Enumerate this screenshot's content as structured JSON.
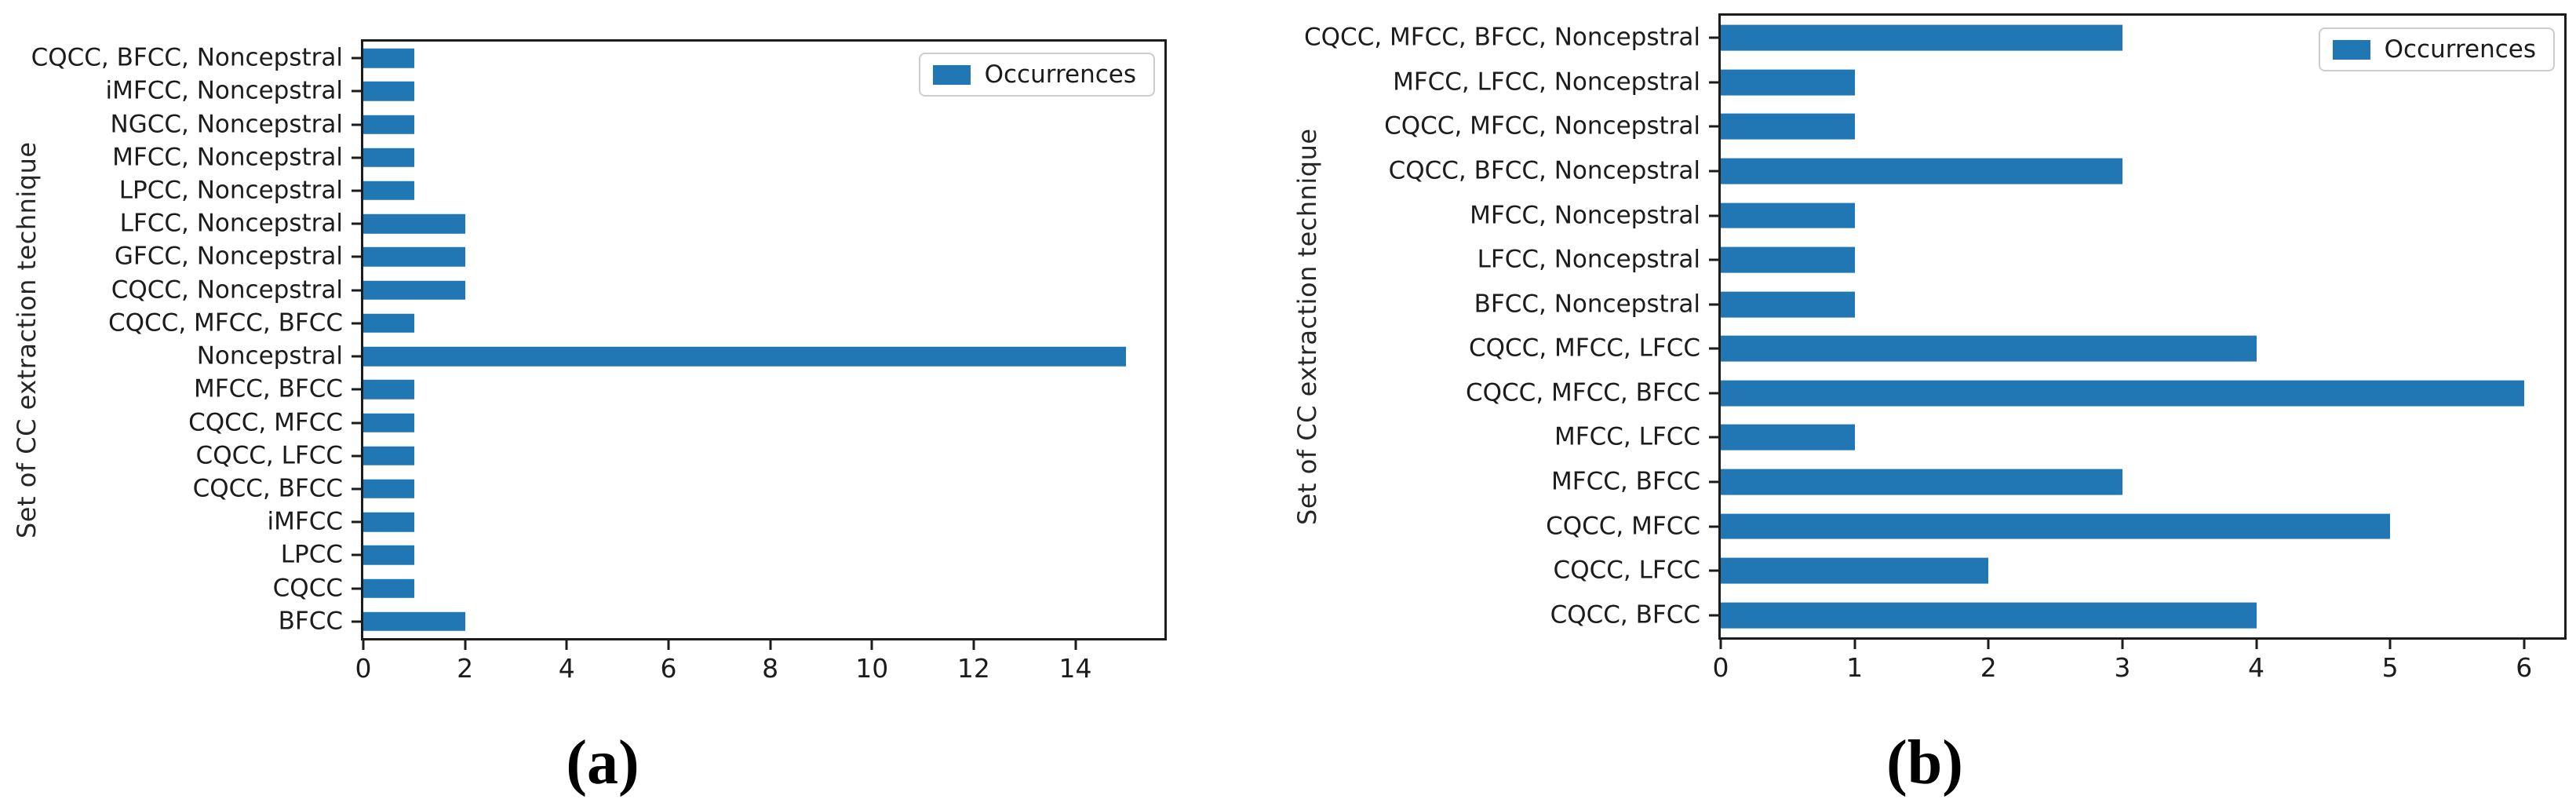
{
  "figure": {
    "bar_color": "#2077b4",
    "spine_color": "#1c1c1c",
    "background": "#ffffff"
  },
  "chart_data": [
    {
      "type": "bar",
      "orientation": "horizontal",
      "caption": "(a)",
      "ylabel": "Set of CC extraction technique",
      "xlabel": "",
      "legend_label": "Occurrences",
      "legend_position": "upper right",
      "grid": false,
      "bar_color": "#2077b4",
      "xlim": [
        0,
        15.75
      ],
      "xticks": [
        0,
        2,
        4,
        6,
        8,
        10,
        12,
        14
      ],
      "categories": [
        "CQCC, BFCC, Noncepstral",
        "iMFCC, Noncepstral",
        "NGCC, Noncepstral",
        "MFCC, Noncepstral",
        "LPCC, Noncepstral",
        "LFCC, Noncepstral",
        "GFCC, Noncepstral",
        "CQCC, Noncepstral",
        "CQCC, MFCC, BFCC",
        "Noncepstral",
        "MFCC, BFCC",
        "CQCC, MFCC",
        "CQCC, LFCC",
        "CQCC, BFCC",
        "iMFCC",
        "LPCC",
        "CQCC",
        "BFCC"
      ],
      "values": [
        1,
        1,
        1,
        1,
        1,
        2,
        2,
        2,
        1,
        15,
        1,
        1,
        1,
        1,
        1,
        1,
        1,
        2
      ]
    },
    {
      "type": "bar",
      "orientation": "horizontal",
      "caption": "(b)",
      "ylabel": "Set of CC extraction technique",
      "xlabel": "",
      "legend_label": "Occurrences",
      "legend_position": "upper right",
      "grid": false,
      "bar_color": "#2077b4",
      "xlim": [
        0,
        6.3
      ],
      "xticks": [
        0,
        1,
        2,
        3,
        4,
        5,
        6
      ],
      "categories": [
        "CQCC, MFCC, BFCC, Noncepstral",
        "MFCC, LFCC, Noncepstral",
        "CQCC, MFCC, Noncepstral",
        "CQCC, BFCC, Noncepstral",
        "MFCC, Noncepstral",
        "LFCC, Noncepstral",
        "BFCC, Noncepstral",
        "CQCC, MFCC, LFCC",
        "CQCC, MFCC, BFCC",
        "MFCC, LFCC",
        "MFCC, BFCC",
        "CQCC, MFCC",
        "CQCC, LFCC",
        "CQCC, BFCC"
      ],
      "values": [
        3,
        1,
        1,
        3,
        1,
        1,
        1,
        4,
        6,
        1,
        3,
        5,
        2,
        4
      ]
    }
  ]
}
